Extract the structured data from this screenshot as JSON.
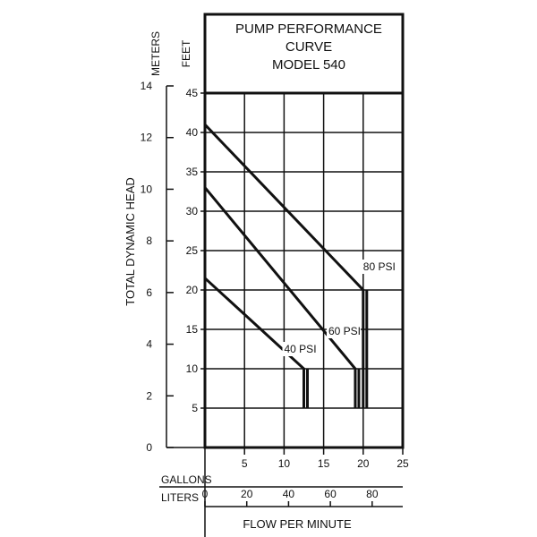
{
  "chart_data": {
    "type": "line",
    "title": [
      "PUMP PERFORMANCE",
      "CURVE",
      "MODEL 540"
    ],
    "ylabel": "TOTAL DYNAMIC HEAD",
    "xlabel": "FLOW PER MINUTE",
    "left_axis_unit": "METERS",
    "right_axis_unit": "FEET",
    "bottom_row1_unit": "GALLONS",
    "bottom_row2_unit": "LITERS",
    "meters_ticks": [
      "14",
      "12",
      "10",
      "8",
      "6",
      "4",
      "2",
      "0"
    ],
    "feet_ticks": [
      "45",
      "40",
      "35",
      "30",
      "25",
      "20",
      "15",
      "10",
      "5"
    ],
    "gallons_ticks": [
      "5",
      "10",
      "15",
      "20",
      "25"
    ],
    "liters_ticks": [
      "0",
      "20",
      "40",
      "60",
      "80"
    ],
    "xlim_gpm": [
      0,
      25
    ],
    "ylim_feet": [
      0,
      45
    ],
    "series": [
      {
        "name": "40 PSI",
        "x": [
          0,
          12.5,
          12.5
        ],
        "y": [
          21.5,
          10,
          5
        ]
      },
      {
        "name": "60 PSI",
        "x": [
          0,
          19,
          19
        ],
        "y": [
          33,
          10,
          5
        ]
      },
      {
        "name": "80 PSI",
        "x": [
          0,
          20,
          20
        ],
        "y": [
          41,
          20,
          5
        ]
      }
    ]
  }
}
